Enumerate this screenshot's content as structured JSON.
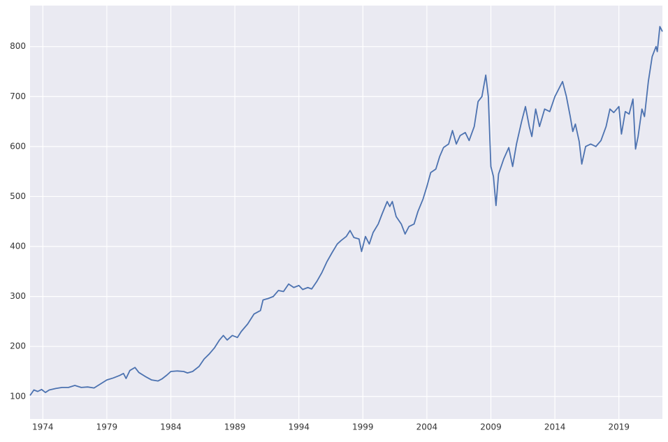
{
  "chart_data": {
    "type": "line",
    "x": [
      1973.0,
      1973.3,
      1973.6,
      1973.9,
      1974.2,
      1974.5,
      1975.0,
      1975.5,
      1976.0,
      1976.5,
      1977.0,
      1977.5,
      1978.0,
      1978.5,
      1979.0,
      1979.5,
      1980.0,
      1980.3,
      1980.5,
      1980.8,
      1981.2,
      1981.5,
      1982.0,
      1982.5,
      1983.0,
      1983.3,
      1983.7,
      1984.0,
      1984.5,
      1985.0,
      1985.3,
      1985.7,
      1986.2,
      1986.6,
      1987.0,
      1987.4,
      1987.8,
      1988.1,
      1988.4,
      1988.8,
      1989.2,
      1989.5,
      1990.0,
      1990.5,
      1991.0,
      1991.2,
      1991.6,
      1992.0,
      1992.4,
      1992.8,
      1993.2,
      1993.6,
      1994.0,
      1994.3,
      1994.7,
      1995.0,
      1995.4,
      1995.8,
      1996.2,
      1996.6,
      1997.0,
      1997.3,
      1997.7,
      1998.0,
      1998.3,
      1998.7,
      1998.9,
      1999.2,
      1999.5,
      1999.8,
      2000.2,
      2000.5,
      2000.9,
      2001.1,
      2001.3,
      2001.6,
      2002.0,
      2002.3,
      2002.6,
      2003.0,
      2003.3,
      2003.7,
      2004.0,
      2004.3,
      2004.7,
      2005.0,
      2005.3,
      2005.7,
      2006.0,
      2006.3,
      2006.6,
      2007.0,
      2007.3,
      2007.7,
      2008.0,
      2008.3,
      2008.6,
      2008.8,
      2009.0,
      2009.2,
      2009.4,
      2009.6,
      2010.0,
      2010.4,
      2010.7,
      2011.0,
      2011.4,
      2011.7,
      2012.0,
      2012.2,
      2012.5,
      2012.8,
      2013.2,
      2013.6,
      2014.0,
      2014.4,
      2014.6,
      2014.9,
      2015.2,
      2015.4,
      2015.6,
      2015.9,
      2016.1,
      2016.4,
      2016.8,
      2017.2,
      2017.6,
      2018.0,
      2018.3,
      2018.6,
      2019.0,
      2019.2,
      2019.5,
      2019.8,
      2020.1,
      2020.3,
      2020.5,
      2020.8,
      2021.0,
      2021.3,
      2021.6,
      2021.9,
      2022.0,
      2022.2,
      2022.4
    ],
    "series": [
      {
        "color": "#4c72b0",
        "values": [
          102,
          113,
          110,
          114,
          108,
          113,
          116,
          118,
          118,
          122,
          118,
          119,
          117,
          125,
          133,
          137,
          142,
          146,
          136,
          152,
          158,
          148,
          140,
          133,
          131,
          135,
          143,
          150,
          151,
          150,
          147,
          150,
          160,
          175,
          185,
          197,
          213,
          222,
          213,
          222,
          218,
          230,
          245,
          265,
          272,
          293,
          296,
          300,
          312,
          310,
          325,
          318,
          322,
          314,
          318,
          315,
          330,
          348,
          370,
          388,
          405,
          412,
          420,
          432,
          418,
          415,
          390,
          420,
          405,
          428,
          445,
          465,
          490,
          480,
          490,
          460,
          445,
          425,
          440,
          445,
          470,
          495,
          520,
          548,
          555,
          580,
          598,
          605,
          632,
          605,
          622,
          628,
          612,
          640,
          690,
          700,
          743,
          700,
          560,
          540,
          482,
          545,
          575,
          598,
          560,
          605,
          650,
          680,
          640,
          620,
          675,
          640,
          675,
          670,
          700,
          720,
          730,
          700,
          660,
          630,
          645,
          610,
          565,
          600,
          605,
          600,
          612,
          640,
          675,
          668,
          680,
          625,
          670,
          665,
          695,
          595,
          620,
          675,
          660,
          730,
          780,
          800,
          790,
          840,
          830
        ]
      }
    ],
    "xlim": [
      1973.0,
      2022.4
    ],
    "xticks": [
      1974,
      1979,
      1984,
      1989,
      1994,
      1999,
      2004,
      2009,
      2014,
      2019
    ],
    "ylim": [
      55,
      882
    ],
    "yticks": [
      100,
      200,
      300,
      400,
      500,
      600,
      700,
      800
    ],
    "grid": true
  }
}
